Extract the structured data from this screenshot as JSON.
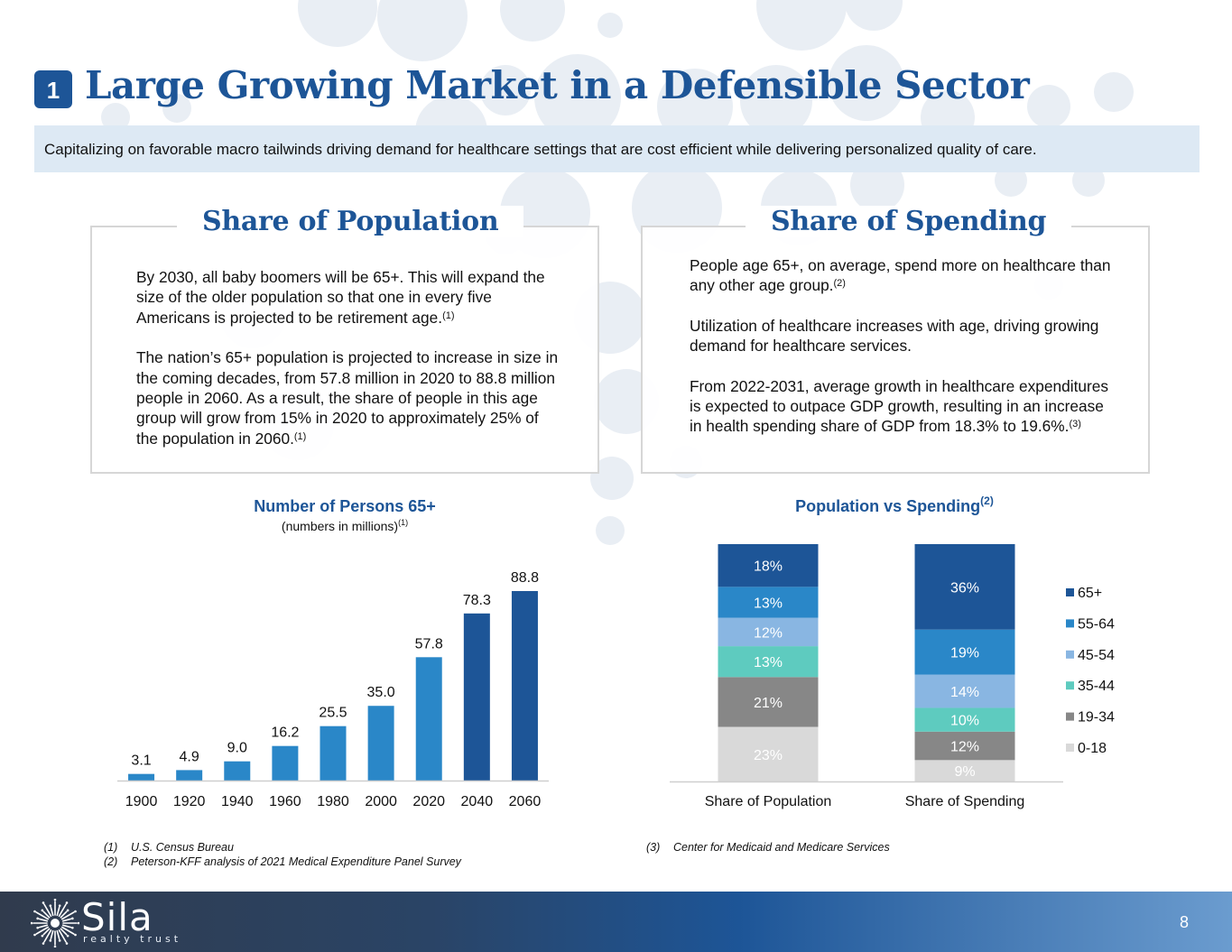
{
  "header": {
    "section_number": "1",
    "title": "Large Growing Market in a Defensible Sector",
    "banner": "Capitalizing on favorable macro tailwinds driving demand for healthcare settings that are cost efficient while delivering personalized quality of care."
  },
  "population_box": {
    "title": "Share of Population",
    "p1": "By 2030, all baby boomers will be 65+. This will expand the size of the older population so that one in every five Americans is projected to be retirement age.",
    "p1_ref": "(1)",
    "p2": "The nation’s 65+ population is projected to increase in size in the coming decades, from 57.8 million in 2020 to 88.8 million people in 2060. As a result, the share of people in this age group will grow from 15% in 2020 to approximately 25% of the population in 2060.",
    "p2_ref": "(1)"
  },
  "spending_box": {
    "title": "Share of Spending",
    "p1": "People age 65+, on average, spend more on healthcare than any other age group.",
    "p1_ref": "(2)",
    "p2": "Utilization of healthcare increases with age, driving growing demand for healthcare services.",
    "p3": "From 2022-2031, average growth in healthcare expenditures is expected to outpace GDP growth, resulting in an increase in health spending share of GDP from 18.3% to 19.6%.",
    "p3_ref": "(3)"
  },
  "chart_data": [
    {
      "type": "bar",
      "title": "Number of Persons 65+",
      "subtitle": "(numbers in millions)",
      "subtitle_ref": "(1)",
      "categories": [
        "1900",
        "1920",
        "1940",
        "1960",
        "1980",
        "2000",
        "2020",
        "2040",
        "2060"
      ],
      "values": [
        3.1,
        4.9,
        9.0,
        16.2,
        25.5,
        35.0,
        57.8,
        78.3,
        88.8
      ],
      "value_labels": [
        "3.1",
        "4.9",
        "9.0",
        "16.2",
        "25.5",
        "35.0",
        "57.8",
        "78.3",
        "88.8"
      ],
      "ylim": [
        0,
        88.8
      ],
      "colors": [
        "#2a87c8",
        "#2a87c8",
        "#2a87c8",
        "#2a87c8",
        "#2a87c8",
        "#2a87c8",
        "#2a87c8",
        "#1d5597",
        "#1d5597"
      ],
      "grid": false
    },
    {
      "type": "bar",
      "stacked": true,
      "title": "Population vs Spending",
      "title_ref": "(2)",
      "categories": [
        "Share of Population",
        "Share of Spending"
      ],
      "series": [
        {
          "name": "0-18",
          "values": [
            23,
            9
          ],
          "labels": [
            "23%",
            "9%"
          ],
          "color": "#d9d9d9"
        },
        {
          "name": "19-34",
          "values": [
            21,
            12
          ],
          "labels": [
            "21%",
            "12%"
          ],
          "color": "#878787"
        },
        {
          "name": "35-44",
          "values": [
            13,
            10
          ],
          "labels": [
            "13%",
            "10%"
          ],
          "color": "#5ecbbf"
        },
        {
          "name": "45-54",
          "values": [
            12,
            14
          ],
          "labels": [
            "12%",
            "14%"
          ],
          "color": "#89b6e2"
        },
        {
          "name": "55-64",
          "values": [
            13,
            19
          ],
          "labels": [
            "13%",
            "19%"
          ],
          "color": "#2a87c8"
        },
        {
          "name": "65+",
          "values": [
            18,
            36
          ],
          "labels": [
            "18%",
            "36%"
          ],
          "color": "#1d5597"
        }
      ],
      "legend_order": [
        "65+",
        "55-64",
        "45-54",
        "35-44",
        "19-34",
        "0-18"
      ],
      "legend_position": "right",
      "grid": false
    }
  ],
  "footnotes": {
    "left": [
      {
        "tag": "(1)",
        "text": "U.S. Census Bureau"
      },
      {
        "tag": "(2)",
        "text": "Peterson-KFF analysis of 2021 Medical Expenditure Panel Survey"
      }
    ],
    "right": [
      {
        "tag": "(3)",
        "text": "Center for Medicaid and Medicare Services"
      }
    ]
  },
  "footer": {
    "logo_name": "Sila",
    "logo_sub": "realty trust",
    "page_number": "8"
  }
}
